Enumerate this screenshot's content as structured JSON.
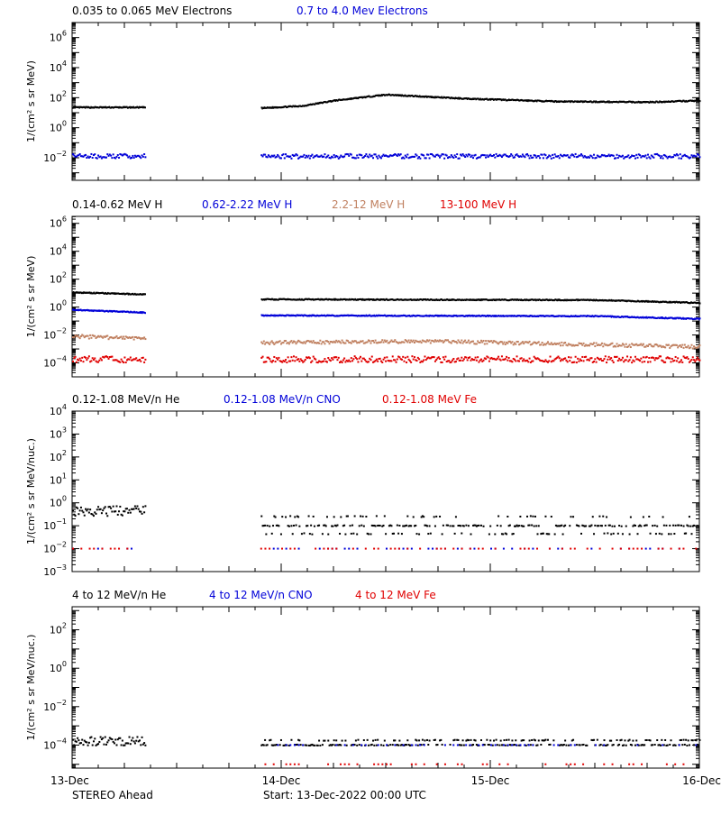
{
  "instrument": "STEREO Ahead",
  "start_text": "Start: 13-Dec-2022 00:00 UTC",
  "colors": {
    "axis": "#000000",
    "black": "#000000",
    "blue": "#0000d8",
    "tan": "#c08060",
    "red": "#e00000"
  },
  "chart_data": [
    {
      "type": "scatter",
      "id": "electrons",
      "ylabel": "1/(cm² s sr MeV)",
      "y_scale": "log",
      "ylim_exp": [
        -3.5,
        7
      ],
      "y_tick_exps": [
        -2,
        0,
        2,
        4,
        6
      ],
      "legend": [
        {
          "name": "0.035 to 0.065 MeV Electrons",
          "color": "black"
        },
        {
          "name": "0.7 to 4.0 Mev Electrons",
          "color": "blue"
        }
      ],
      "series": [
        {
          "name": "0.035 to 0.065 MeV Electrons",
          "color": "black",
          "style": "dense",
          "x_days": [
            0.0,
            0.35,
            0.9,
            1.1,
            1.25,
            1.5,
            1.85,
            2.3,
            2.75,
            3.0
          ],
          "log_y": [
            1.35,
            1.35,
            1.3,
            1.45,
            1.8,
            2.2,
            1.95,
            1.75,
            1.7,
            1.8
          ]
        },
        {
          "name": "0.7 to 4.0 Mev Electrons",
          "color": "blue",
          "style": "scatter",
          "x_days": [
            0.0,
            0.35,
            0.9,
            3.0
          ],
          "log_y": [
            -1.9,
            -1.9,
            -1.9,
            -1.9
          ],
          "spread": 0.3
        }
      ]
    },
    {
      "type": "scatter",
      "id": "protons",
      "ylabel": "1/(cm² s sr MeV)",
      "y_scale": "log",
      "ylim_exp": [
        -5,
        6.5
      ],
      "y_tick_exps": [
        -4,
        -2,
        0,
        2,
        4,
        6
      ],
      "legend": [
        {
          "name": "0.14-0.62 MeV H",
          "color": "black"
        },
        {
          "name": "0.62-2.22 MeV H",
          "color": "blue"
        },
        {
          "name": "2.2-12 MeV H",
          "color": "tan"
        },
        {
          "name": "13-100 MeV H",
          "color": "red"
        }
      ],
      "series": [
        {
          "name": "0.14-0.62 MeV H",
          "color": "black",
          "style": "dense",
          "x_days": [
            0.0,
            0.35,
            0.9,
            2.5,
            3.0
          ],
          "log_y": [
            1.05,
            0.9,
            0.55,
            0.5,
            0.3
          ]
        },
        {
          "name": "0.62-2.22 MeV H",
          "color": "blue",
          "style": "dense",
          "x_days": [
            0.0,
            0.35,
            0.9,
            2.5,
            3.0
          ],
          "log_y": [
            -0.2,
            -0.4,
            -0.6,
            -0.65,
            -0.85
          ]
        },
        {
          "name": "2.2-12 MeV H",
          "color": "tan",
          "style": "scatter",
          "x_days": [
            0.0,
            0.35,
            0.9,
            1.7,
            3.0
          ],
          "log_y": [
            -2.1,
            -2.25,
            -2.55,
            -2.45,
            -2.85
          ],
          "spread": 0.25
        },
        {
          "name": "13-100 MeV H",
          "color": "red",
          "style": "scatter",
          "x_days": [
            0.0,
            0.35,
            0.9,
            3.0
          ],
          "log_y": [
            -3.75,
            -3.75,
            -3.75,
            -3.75
          ],
          "spread": 0.45
        }
      ]
    },
    {
      "type": "scatter",
      "id": "heavy_low",
      "ylabel": "1/(cm² s sr MeV/nuc.)",
      "y_scale": "log",
      "ylim_exp": [
        -3,
        4
      ],
      "y_tick_exps": [
        -3,
        -2,
        -1,
        0,
        1,
        2,
        3,
        4
      ],
      "legend": [
        {
          "name": "0.12-1.08 MeV/n He",
          "color": "black"
        },
        {
          "name": "0.12-1.08 MeV/n CNO",
          "color": "blue"
        },
        {
          "name": "0.12-1.08 MeV Fe",
          "color": "red"
        }
      ],
      "series": [
        {
          "name": "0.12-1.08 MeV/n He",
          "color": "black",
          "style": "quantized",
          "x_days": [
            0.0,
            0.35,
            0.9,
            3.0
          ],
          "levels": [
            -1.0,
            -1.35,
            -0.6
          ],
          "early_log_y": -0.35
        },
        {
          "name": "0.12-1.08 MeV/n CNO",
          "color": "blue",
          "style": "sparse",
          "x_days": [
            0.0,
            0.35,
            0.9,
            3.0
          ],
          "log_y": [
            -2.0,
            -2.0,
            -2.0,
            -2.0
          ]
        },
        {
          "name": "0.12-1.08 MeV Fe",
          "color": "red",
          "style": "sparse",
          "x_days": [
            0.0,
            0.35,
            0.9,
            3.0
          ],
          "log_y": [
            -2.0,
            -2.0,
            -2.0,
            -2.0
          ]
        }
      ]
    },
    {
      "type": "scatter",
      "id": "heavy_high",
      "ylabel": "1/(cm² s sr MeV/nuc.)",
      "y_scale": "log",
      "ylim_exp": [
        -5.2,
        3.2
      ],
      "y_tick_exps": [
        -4,
        -2,
        0,
        2
      ],
      "legend": [
        {
          "name": "4 to 12 MeV/n He",
          "color": "black"
        },
        {
          "name": "4 to 12 MeV/n CNO",
          "color": "blue"
        },
        {
          "name": "4 to 12 MeV Fe",
          "color": "red"
        }
      ],
      "series": [
        {
          "name": "4 to 12 MeV/n He",
          "color": "black",
          "style": "quantized",
          "x_days": [
            0.0,
            0.35,
            0.9,
            3.0
          ],
          "levels": [
            -4.0,
            -3.75
          ],
          "early_log_y": -3.8
        },
        {
          "name": "4 to 12 MeV/n CNO",
          "color": "blue",
          "style": "sparse",
          "x_days": [
            0.9,
            3.0
          ],
          "log_y": [
            -4.0,
            -4.0
          ]
        },
        {
          "name": "4 to 12 MeV Fe",
          "color": "red",
          "style": "sparse",
          "x_days": [
            0.9,
            3.0
          ],
          "log_y": [
            -5.0,
            -5.0
          ]
        }
      ]
    }
  ],
  "x_axis": {
    "range_days": [
      0,
      3
    ],
    "major_labels": [
      "13-Dec",
      "14-Dec",
      "15-Dec",
      "16-Dec"
    ],
    "data_gap_days": [
      0.35,
      0.9
    ]
  }
}
